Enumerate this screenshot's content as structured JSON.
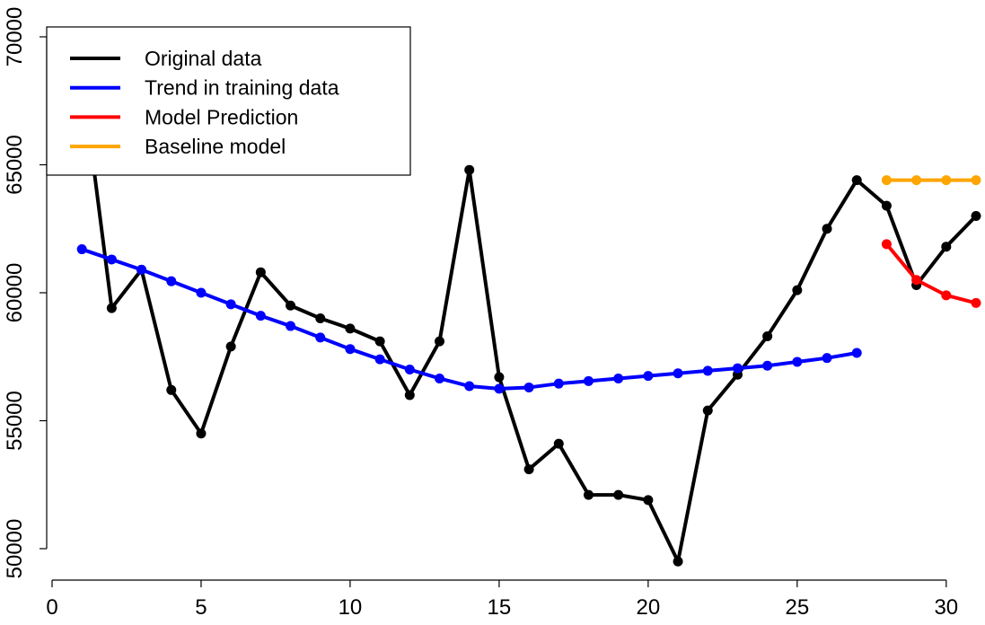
{
  "chart_data": {
    "type": "line",
    "title": "",
    "xlabel": "",
    "ylabel": "",
    "xlim": [
      0,
      31
    ],
    "ylim": [
      50000,
      70000
    ],
    "x_ticks": [
      0,
      5,
      10,
      15,
      20,
      25,
      30
    ],
    "x_tick_labels": [
      "0",
      "5",
      "10",
      "15",
      "20",
      "25",
      "30"
    ],
    "y_ticks": [
      50000,
      55000,
      60000,
      65000,
      70000
    ],
    "y_tick_labels": [
      "50000",
      "55000",
      "60000",
      "65000",
      "70000"
    ],
    "grid": false,
    "legend_position": "top-left",
    "series": [
      {
        "key": "original",
        "name": "Original data",
        "color": "#000000",
        "x": [
          1,
          2,
          3,
          4,
          5,
          6,
          7,
          8,
          9,
          10,
          11,
          12,
          13,
          14,
          15,
          16,
          17,
          18,
          19,
          20,
          21,
          22,
          23,
          24,
          25,
          26,
          27,
          28,
          29,
          30,
          31
        ],
        "values": [
          68500,
          59400,
          60900,
          56200,
          54500,
          57900,
          60800,
          59500,
          59000,
          58600,
          58100,
          56000,
          58100,
          64800,
          56700,
          53100,
          54100,
          52100,
          52100,
          51900,
          49500,
          55400,
          56800,
          58300,
          60100,
          62500,
          64400,
          63400,
          60300,
          61800,
          63000
        ]
      },
      {
        "key": "trend",
        "name": "Trend in training data",
        "color": "#0000ff",
        "x": [
          1,
          2,
          3,
          4,
          5,
          6,
          7,
          8,
          9,
          10,
          11,
          12,
          13,
          14,
          15,
          16,
          17,
          18,
          19,
          20,
          21,
          22,
          23,
          24,
          25,
          26,
          27
        ],
        "values": [
          61700,
          61300,
          60900,
          60450,
          60000,
          59550,
          59100,
          58700,
          58250,
          57800,
          57400,
          57000,
          56650,
          56350,
          56250,
          56300,
          56450,
          56550,
          56650,
          56750,
          56850,
          56950,
          57050,
          57150,
          57300,
          57450,
          57650
        ]
      },
      {
        "key": "prediction",
        "name": "Model Prediction",
        "color": "#ff0000",
        "x": [
          28,
          29,
          30,
          31
        ],
        "values": [
          61900,
          60500,
          59900,
          59600
        ]
      },
      {
        "key": "baseline",
        "name": "Baseline model",
        "color": "#ffa500",
        "x": [
          28,
          29,
          30,
          31
        ],
        "values": [
          64400,
          64400,
          64400,
          64400
        ]
      }
    ]
  }
}
